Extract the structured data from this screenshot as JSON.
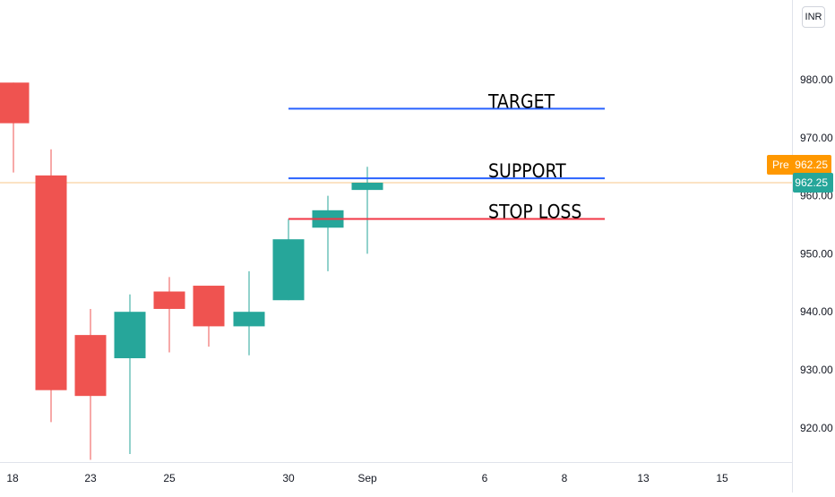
{
  "chart_data": {
    "type": "candlestick",
    "currency": "INR",
    "x_ticks": [
      "18",
      "23",
      "25",
      "30",
      "Sep",
      "6",
      "8",
      "13",
      "15"
    ],
    "y_ticks": [
      "920.00",
      "930.00",
      "940.00",
      "950.00",
      "960.00",
      "970.00",
      "980.00"
    ],
    "ylim": [
      912.5,
      992.5
    ],
    "candles": [
      {
        "open": 979.5,
        "high": 979.5,
        "low": 964.0,
        "close": 972.5
      },
      {
        "open": 963.5,
        "high": 968.0,
        "low": 921.0,
        "close": 926.5
      },
      {
        "open": 936.0,
        "high": 940.5,
        "low": 914.5,
        "close": 925.5
      },
      {
        "open": 932.0,
        "high": 943.0,
        "low": 915.5,
        "close": 940.0
      },
      {
        "open": 943.5,
        "high": 946.0,
        "low": 933.0,
        "close": 940.5
      },
      {
        "open": 944.5,
        "high": 944.5,
        "low": 934.0,
        "close": 937.5
      },
      {
        "open": 937.5,
        "high": 947.0,
        "low": 932.5,
        "close": 940.0
      },
      {
        "open": 942.0,
        "high": 956.0,
        "low": 942.0,
        "close": 952.5
      },
      {
        "open": 954.5,
        "high": 960.0,
        "low": 947.0,
        "close": 957.5
      },
      {
        "open": 961.0,
        "high": 965.0,
        "low": 950.0,
        "close": 962.25
      }
    ],
    "last_price": 962.25,
    "last_price_label": "962.25",
    "premarket_tag": "Pre",
    "premarket_price": "962.25",
    "horizontal_lines": [
      {
        "label": "TARGET",
        "price": 975.0,
        "color": "#2962ff"
      },
      {
        "label": "SUPPORT",
        "price": 963.0,
        "color": "#2962ff"
      },
      {
        "label": "STOP LOSS",
        "price": 956.0,
        "color": "#f23645"
      }
    ],
    "colors": {
      "up": "#26a69a",
      "down": "#ef5350",
      "price_line": "#f7c78a",
      "premarket": "#ff9800"
    }
  }
}
